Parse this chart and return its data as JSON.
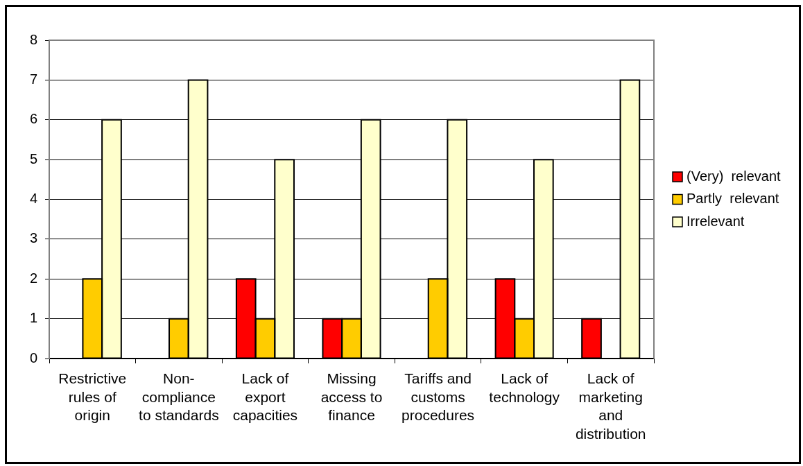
{
  "chart_data": {
    "type": "bar",
    "categories": [
      "Restrictive rules of origin",
      "Non-compliance to standards",
      "Lack of export capacities",
      "Missing access to finance",
      "Tariffs and customs procedures",
      "Lack of technology",
      "Lack of marketing and distribution"
    ],
    "series": [
      {
        "name": "(Very)  relevant",
        "color": "#ff0000",
        "values": [
          0,
          0,
          2,
          1,
          0,
          2,
          1
        ]
      },
      {
        "name": "Partly  relevant",
        "color": "#ffcc00",
        "values": [
          2,
          1,
          1,
          1,
          2,
          1,
          0
        ]
      },
      {
        "name": "Irrelevant",
        "color": "#ffffcc",
        "values": [
          6,
          7,
          5,
          6,
          6,
          5,
          7
        ]
      }
    ],
    "ylim": [
      0,
      8
    ],
    "yticks": [
      0,
      1,
      2,
      3,
      4,
      5,
      6,
      7,
      8
    ],
    "grid": "y",
    "legend": "right"
  }
}
